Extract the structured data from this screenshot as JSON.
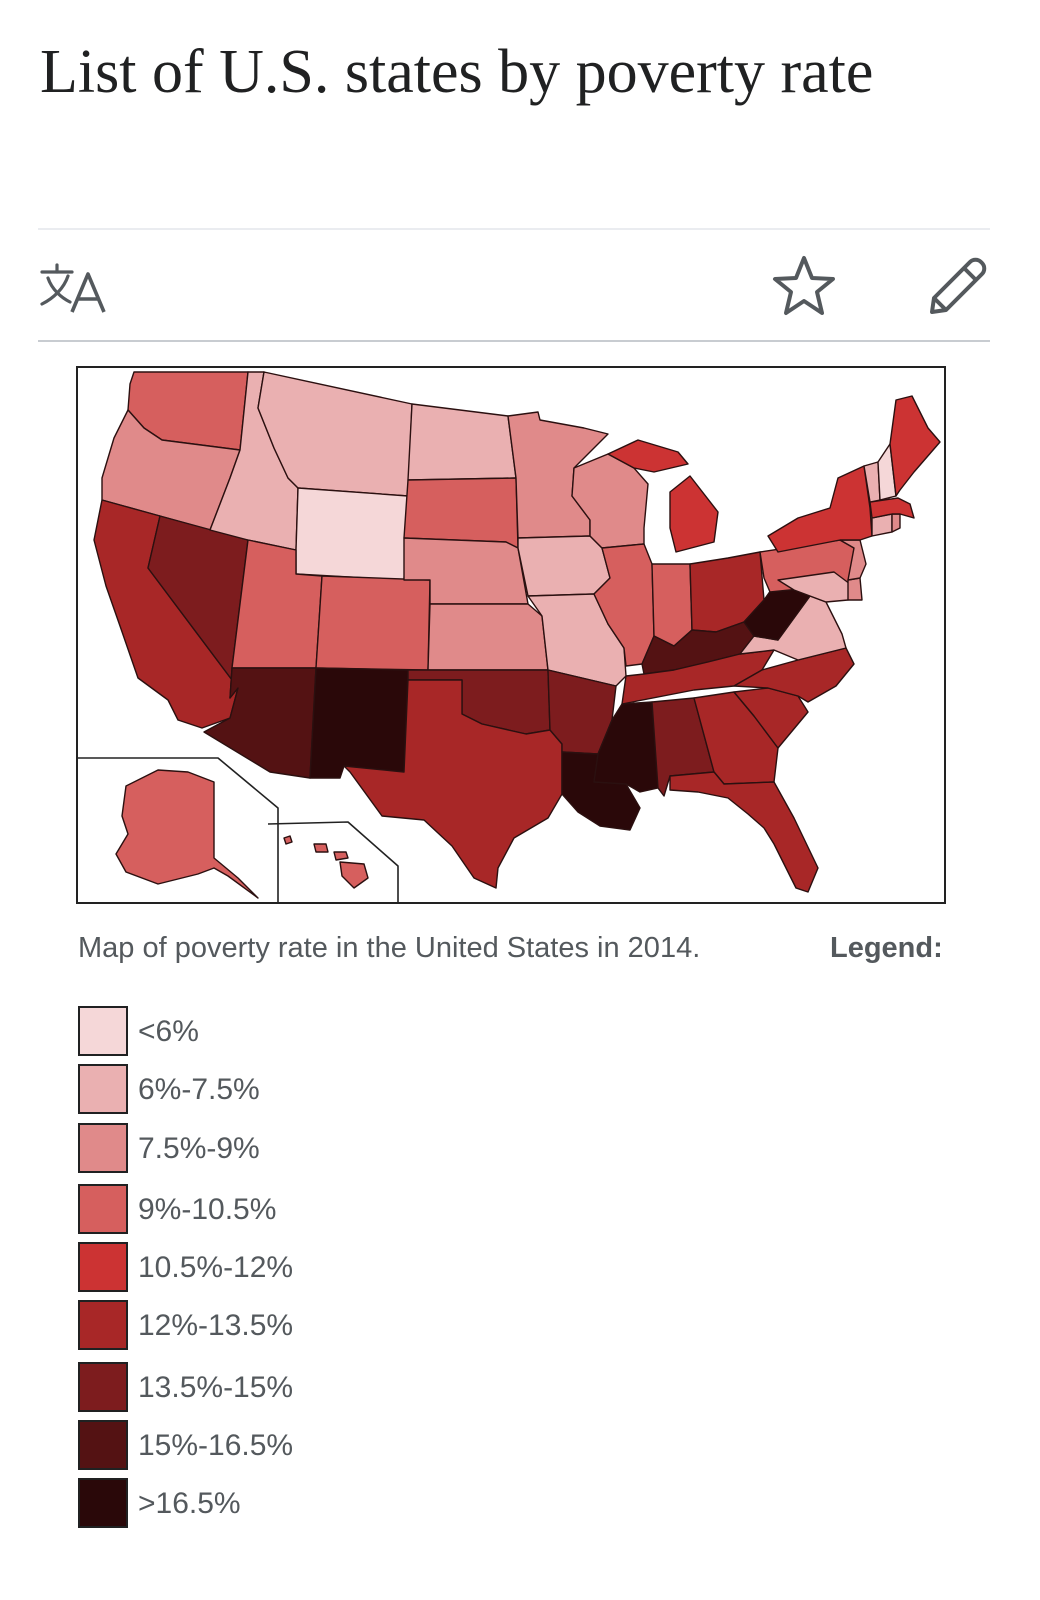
{
  "page": {
    "title": "List of U.S. states by poverty rate"
  },
  "toolbar": {
    "language_icon": "translate-icon",
    "watch_icon": "star-icon",
    "edit_icon": "pencil-icon"
  },
  "figure": {
    "caption": "Map of poverty rate in the United States in 2014.",
    "legend_label": "Legend:"
  },
  "legend": {
    "items": [
      {
        "label": "<6%",
        "color": "#f5d7d8"
      },
      {
        "label": "6%-7.5%",
        "color": "#eab0b1"
      },
      {
        "label": "7.5%-9%",
        "color": "#e08a8a"
      },
      {
        "label": "9%-10.5%",
        "color": "#d65f5e"
      },
      {
        "label": "10.5%-12%",
        "color": "#cc3333"
      },
      {
        "label": "12%-13.5%",
        "color": "#a82727"
      },
      {
        "label": "13.5%-15%",
        "color": "#7d1c1e"
      },
      {
        "label": "15%-16.5%",
        "color": "#541213"
      },
      {
        "label": ">16.5%",
        "color": "#2a0809"
      }
    ]
  },
  "map": {
    "states": [
      {
        "name": "Washington",
        "tier": 3
      },
      {
        "name": "Oregon",
        "tier": 2
      },
      {
        "name": "California",
        "tier": 5
      },
      {
        "name": "Nevada",
        "tier": 6
      },
      {
        "name": "Idaho",
        "tier": 1
      },
      {
        "name": "Montana",
        "tier": 1
      },
      {
        "name": "Wyoming",
        "tier": 0
      },
      {
        "name": "Utah",
        "tier": 3
      },
      {
        "name": "Arizona",
        "tier": 7
      },
      {
        "name": "Colorado",
        "tier": 3
      },
      {
        "name": "New Mexico",
        "tier": 8
      },
      {
        "name": "North Dakota",
        "tier": 1
      },
      {
        "name": "South Dakota",
        "tier": 3
      },
      {
        "name": "Nebraska",
        "tier": 2
      },
      {
        "name": "Kansas",
        "tier": 2
      },
      {
        "name": "Oklahoma",
        "tier": 6
      },
      {
        "name": "Texas",
        "tier": 5
      },
      {
        "name": "Minnesota",
        "tier": 2
      },
      {
        "name": "Iowa",
        "tier": 1
      },
      {
        "name": "Missouri",
        "tier": 1
      },
      {
        "name": "Arkansas",
        "tier": 6
      },
      {
        "name": "Louisiana",
        "tier": 8
      },
      {
        "name": "Wisconsin",
        "tier": 2
      },
      {
        "name": "Illinois",
        "tier": 3
      },
      {
        "name": "Michigan",
        "tier": 4
      },
      {
        "name": "Indiana",
        "tier": 3
      },
      {
        "name": "Ohio",
        "tier": 5
      },
      {
        "name": "Kentucky",
        "tier": 7
      },
      {
        "name": "Tennessee",
        "tier": 5
      },
      {
        "name": "Mississippi",
        "tier": 8
      },
      {
        "name": "Alabama",
        "tier": 6
      },
      {
        "name": "Georgia",
        "tier": 5
      },
      {
        "name": "Florida",
        "tier": 5
      },
      {
        "name": "South Carolina",
        "tier": 5
      },
      {
        "name": "North Carolina",
        "tier": 5
      },
      {
        "name": "Virginia",
        "tier": 1
      },
      {
        "name": "West Virginia",
        "tier": 8
      },
      {
        "name": "Pennsylvania",
        "tier": 3
      },
      {
        "name": "New York",
        "tier": 4
      },
      {
        "name": "New Jersey",
        "tier": 2
      },
      {
        "name": "Delaware",
        "tier": 2
      },
      {
        "name": "Maryland",
        "tier": 1
      },
      {
        "name": "Connecticut",
        "tier": 1
      },
      {
        "name": "Rhode Island",
        "tier": 2
      },
      {
        "name": "Massachusetts",
        "tier": 4
      },
      {
        "name": "Vermont",
        "tier": 1
      },
      {
        "name": "New Hampshire",
        "tier": 0
      },
      {
        "name": "Maine",
        "tier": 4
      },
      {
        "name": "Alaska",
        "tier": 3
      },
      {
        "name": "Hawaii",
        "tier": 3
      }
    ]
  }
}
